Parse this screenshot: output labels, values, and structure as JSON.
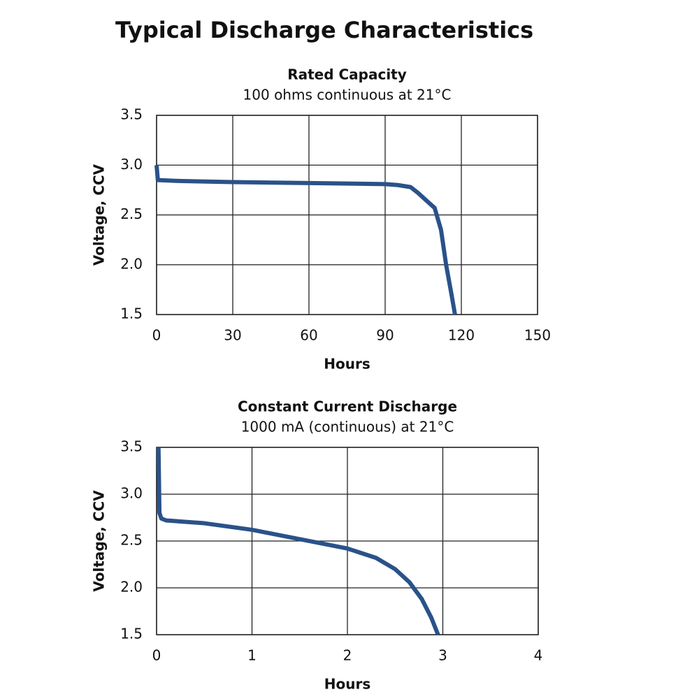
{
  "title": "Typical Discharge Characteristics",
  "chart_data": [
    {
      "type": "line",
      "title": "Rated Capacity",
      "subtitle": "100 ohms continuous at 21°C",
      "x_label": "Hours",
      "y_label": "Voltage, CCV",
      "series": [
        {
          "color": "#2a5289",
          "x": [
            0,
            0.5,
            10,
            30,
            60,
            90,
            95,
            100,
            103,
            106,
            109.5,
            112,
            114,
            116,
            117.5
          ],
          "values": [
            3.0,
            2.85,
            2.84,
            2.83,
            2.82,
            2.81,
            2.8,
            2.78,
            2.72,
            2.65,
            2.57,
            2.35,
            2.0,
            1.72,
            1.5
          ]
        }
      ],
      "xlim": [
        0,
        150
      ],
      "xticks": [
        0,
        30,
        60,
        90,
        120,
        150
      ],
      "ylim": [
        1.5,
        3.5
      ],
      "yticks": [
        1.5,
        {
          "value": 2,
          "label": "2.0"
        },
        2.5,
        {
          "value": 3,
          "label": "3.0"
        },
        3.5
      ],
      "grid": true
    },
    {
      "type": "line",
      "title": "Constant Current Discharge",
      "subtitle": "1000 mA (continuous) at 21°C",
      "x_label": "Hours",
      "y_label": "Voltage, CCV",
      "series": [
        {
          "color": "#2a5289",
          "x": [
            0.02,
            0.03,
            0.05,
            0.1,
            0.5,
            1.0,
            1.5,
            2.0,
            2.3,
            2.5,
            2.65,
            2.78,
            2.88,
            2.95
          ],
          "values": [
            3.5,
            2.8,
            2.74,
            2.72,
            2.69,
            2.62,
            2.52,
            2.42,
            2.32,
            2.2,
            2.06,
            1.88,
            1.68,
            1.5
          ]
        }
      ],
      "xlim": [
        0,
        4
      ],
      "xticks": [
        0,
        1,
        2,
        3,
        4
      ],
      "ylim": [
        1.5,
        3.5
      ],
      "yticks": [
        1.5,
        {
          "value": 2,
          "label": "2.0"
        },
        2.5,
        {
          "value": 3,
          "label": "3.0"
        },
        3.5
      ],
      "grid": true
    }
  ]
}
